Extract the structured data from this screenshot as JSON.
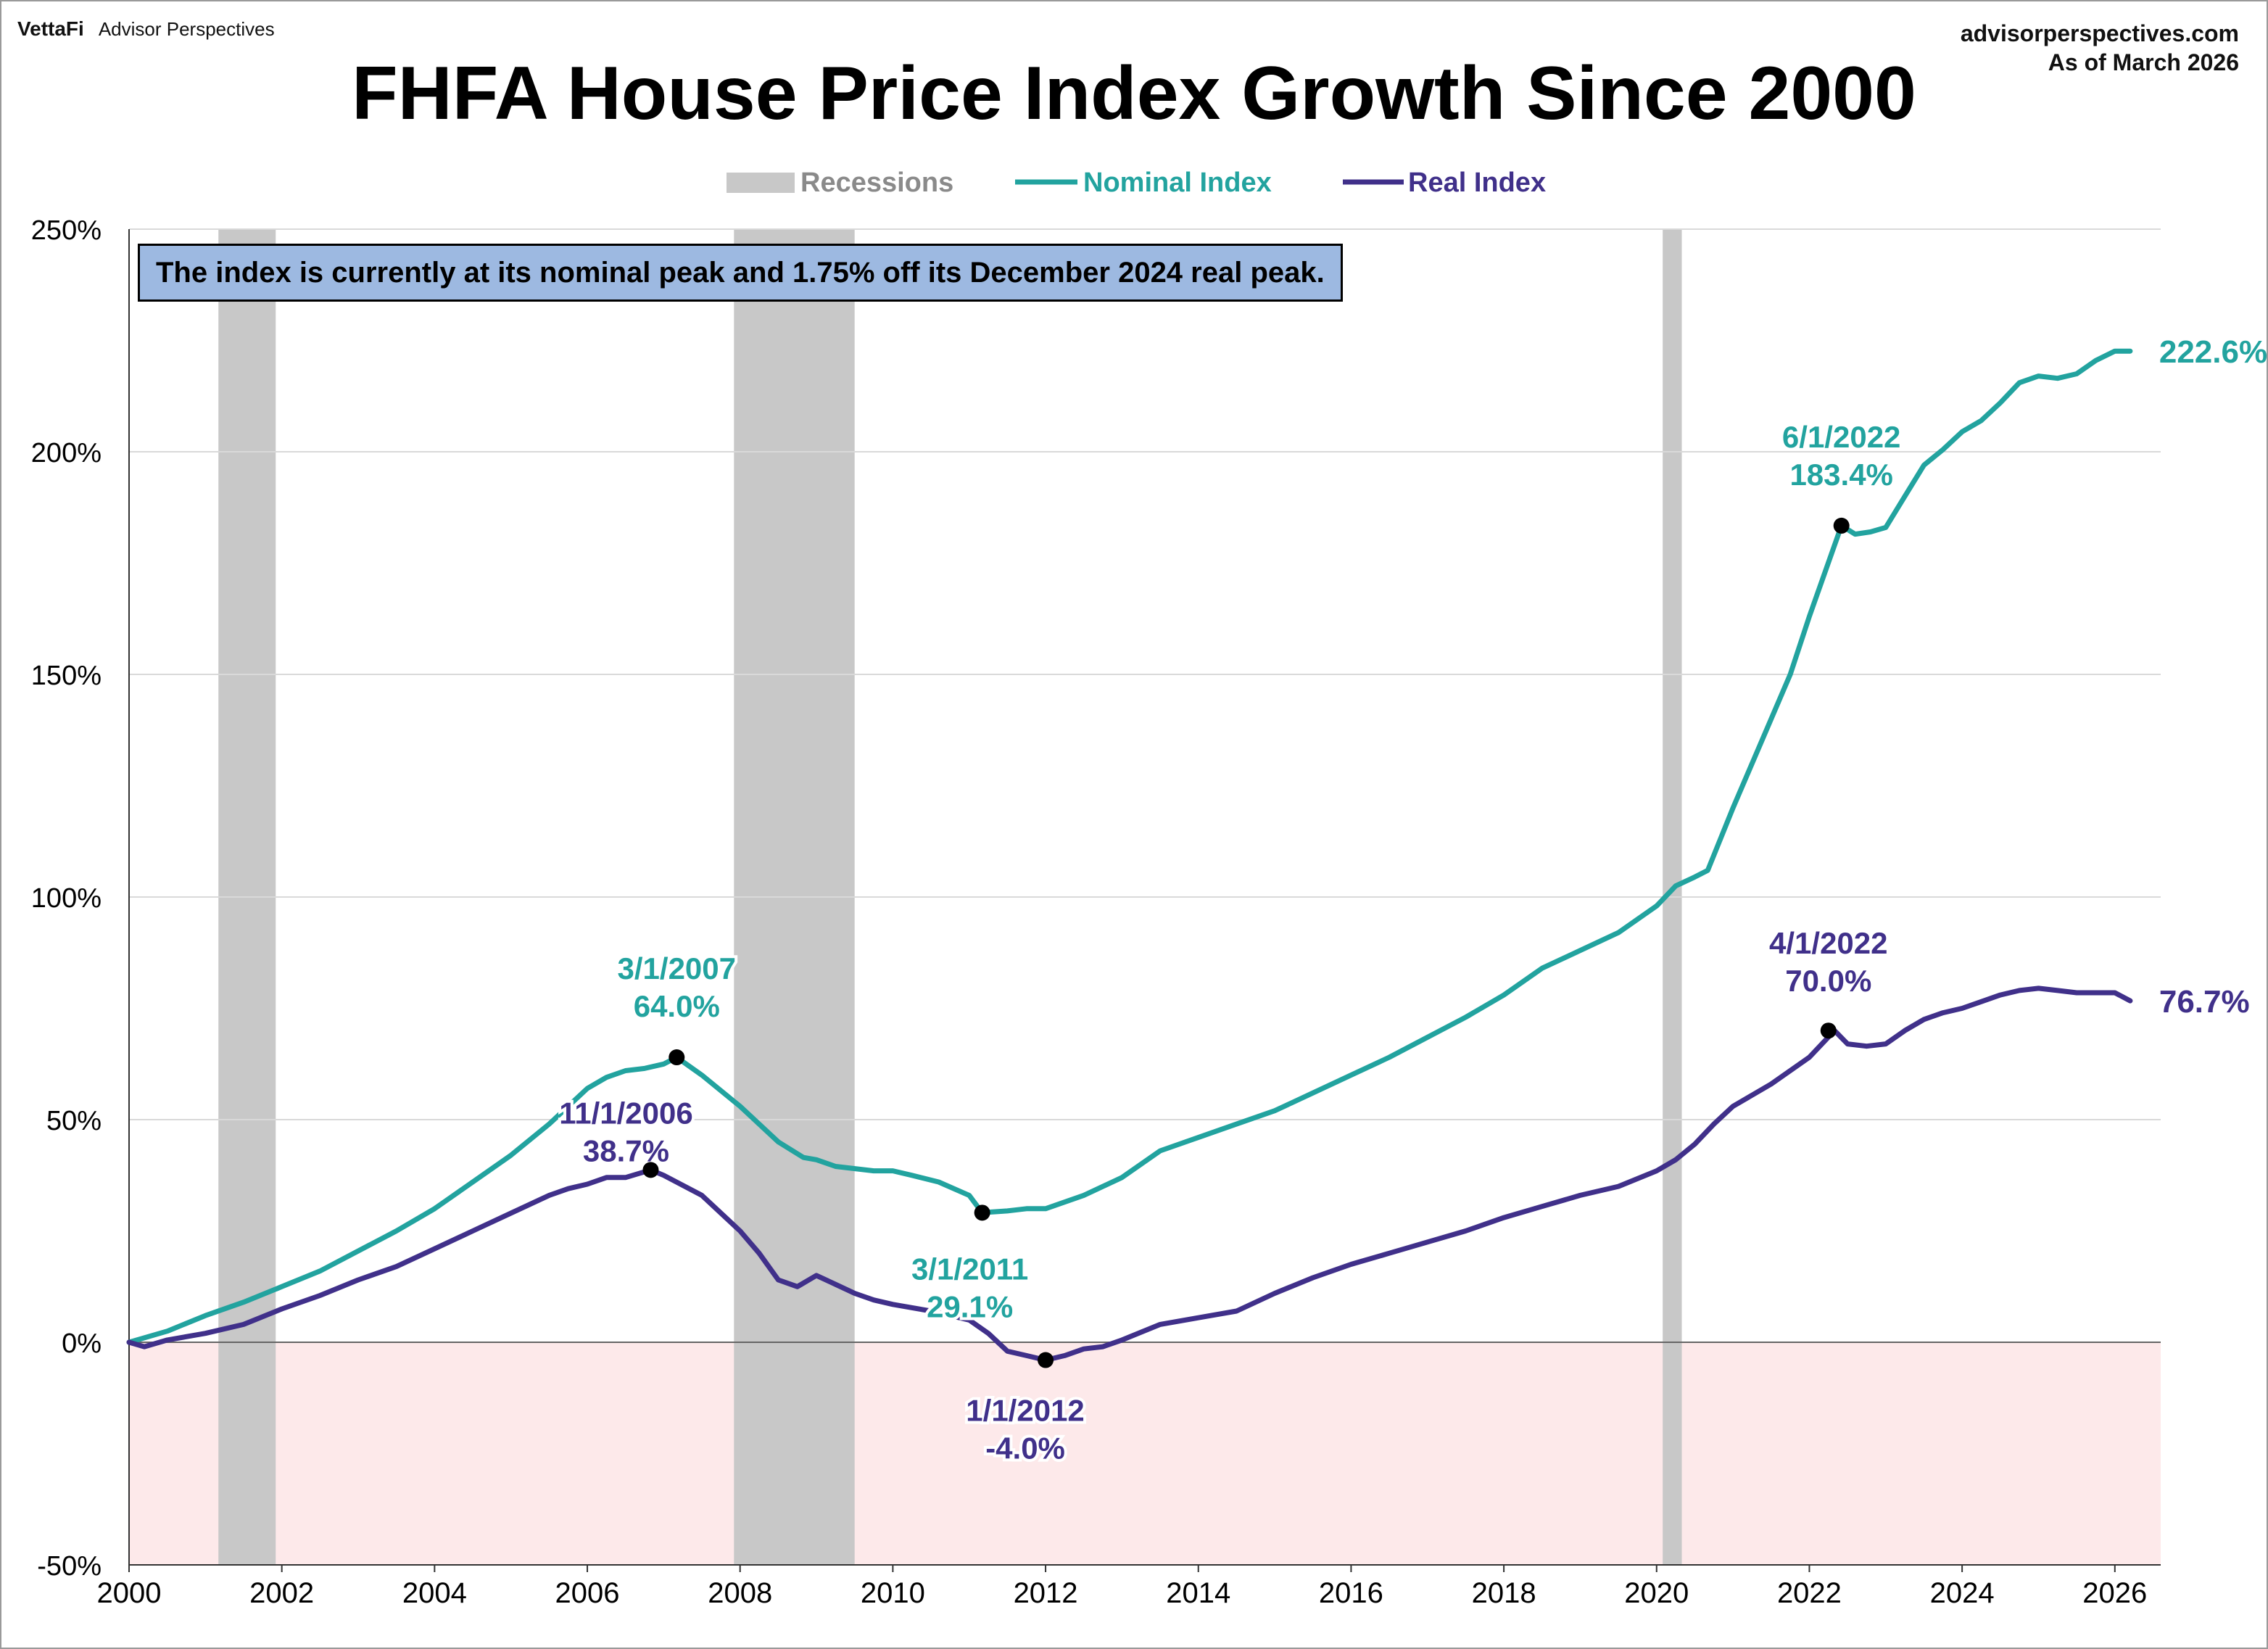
{
  "brand": {
    "logo": "VettaFi",
    "name": "Advisor Perspectives"
  },
  "source": {
    "site": "advisorperspectives.com",
    "asof": "As of March 2026"
  },
  "note": "The index is currently at its nominal peak and 1.75% off its December 2024 real peak.",
  "colors": {
    "nominal": "#22a39f",
    "real": "#40308a",
    "recession": "#c8c8c8",
    "negative_zone": "#fde9ea",
    "legend_recession_text": "#8a8a8a"
  },
  "chart_data": {
    "type": "line",
    "title": "FHFA House Price Index Growth Since 2000",
    "xlim": [
      2000,
      2026.6
    ],
    "ylim": [
      -50,
      250
    ],
    "x_ticks": [
      2000,
      2002,
      2004,
      2006,
      2008,
      2010,
      2012,
      2014,
      2016,
      2018,
      2020,
      2022,
      2024,
      2026
    ],
    "x_tick_labels": [
      "2000",
      "2002",
      "2004",
      "2006",
      "2008",
      "2010",
      "2012",
      "2014",
      "2016",
      "2018",
      "2020",
      "2022",
      "2024",
      "2026"
    ],
    "y_ticks": [
      -50,
      0,
      50,
      100,
      150,
      200,
      250
    ],
    "y_tick_labels": [
      "-50%",
      "0%",
      "50%",
      "100%",
      "150%",
      "200%",
      "250%"
    ],
    "grid": "horizontal",
    "legend": {
      "position": "top-center",
      "items": [
        "Recessions",
        "Nominal Index",
        "Real Index"
      ]
    },
    "recessions": [
      [
        2001.17,
        2001.92
      ],
      [
        2007.92,
        2009.5
      ],
      [
        2020.08,
        2020.33
      ]
    ],
    "series": [
      {
        "name": "Nominal Index",
        "end_label": "222.6%",
        "points": [
          [
            2000,
            0
          ],
          [
            2000.5,
            2.5
          ],
          [
            2001,
            6
          ],
          [
            2001.5,
            9
          ],
          [
            2002,
            12.5
          ],
          [
            2002.5,
            16
          ],
          [
            2003,
            20.5
          ],
          [
            2003.5,
            25
          ],
          [
            2004,
            30
          ],
          [
            2004.5,
            36
          ],
          [
            2005,
            42
          ],
          [
            2005.5,
            49
          ],
          [
            2006,
            57
          ],
          [
            2006.25,
            59.5
          ],
          [
            2006.5,
            61
          ],
          [
            2006.75,
            61.5
          ],
          [
            2007,
            62.5
          ],
          [
            2007.17,
            64
          ],
          [
            2007.5,
            60
          ],
          [
            2008,
            53
          ],
          [
            2008.5,
            45
          ],
          [
            2008.83,
            41.5
          ],
          [
            2009,
            41
          ],
          [
            2009.25,
            39.5
          ],
          [
            2009.75,
            38.5
          ],
          [
            2010,
            38.5
          ],
          [
            2010.25,
            37.5
          ],
          [
            2010.6,
            36
          ],
          [
            2011,
            33
          ],
          [
            2011.17,
            29.1
          ],
          [
            2011.5,
            29.5
          ],
          [
            2011.75,
            30
          ],
          [
            2012,
            30
          ],
          [
            2012.5,
            33
          ],
          [
            2013,
            37
          ],
          [
            2013.5,
            43
          ],
          [
            2014,
            46
          ],
          [
            2014.5,
            49
          ],
          [
            2015,
            52
          ],
          [
            2015.5,
            56
          ],
          [
            2016,
            60
          ],
          [
            2016.5,
            64
          ],
          [
            2017,
            68.5
          ],
          [
            2017.5,
            73
          ],
          [
            2018,
            78
          ],
          [
            2018.5,
            84
          ],
          [
            2019,
            88
          ],
          [
            2019.5,
            92
          ],
          [
            2020,
            98
          ],
          [
            2020.25,
            102.5
          ],
          [
            2020.5,
            104.5
          ],
          [
            2020.67,
            106
          ],
          [
            2021,
            120
          ],
          [
            2021.5,
            140
          ],
          [
            2021.75,
            150
          ],
          [
            2022,
            163
          ],
          [
            2022.42,
            183.4
          ],
          [
            2022.6,
            181.5
          ],
          [
            2022.8,
            182
          ],
          [
            2023,
            183
          ],
          [
            2023.25,
            190
          ],
          [
            2023.5,
            197
          ],
          [
            2023.75,
            200.5
          ],
          [
            2024,
            204.5
          ],
          [
            2024.25,
            207
          ],
          [
            2024.5,
            211
          ],
          [
            2024.75,
            215.5
          ],
          [
            2025,
            217
          ],
          [
            2025.25,
            216.5
          ],
          [
            2025.5,
            217.5
          ],
          [
            2025.75,
            220.5
          ],
          [
            2026,
            222.6
          ],
          [
            2026.2,
            222.6
          ]
        ],
        "annotations": [
          {
            "x": 2007.17,
            "y": 64.0,
            "date": "3/1/2007",
            "value": "64.0%"
          },
          {
            "x": 2011.17,
            "y": 29.1,
            "date": "3/1/2011",
            "value": "29.1%"
          },
          {
            "x": 2022.42,
            "y": 183.4,
            "date": "6/1/2022",
            "value": "183.4%"
          }
        ]
      },
      {
        "name": "Real Index",
        "end_label": "76.7%",
        "points": [
          [
            2000,
            0
          ],
          [
            2000.2,
            -1
          ],
          [
            2000.5,
            0.5
          ],
          [
            2001,
            2
          ],
          [
            2001.5,
            4
          ],
          [
            2002,
            7.5
          ],
          [
            2002.5,
            10.5
          ],
          [
            2003,
            14
          ],
          [
            2003.5,
            17
          ],
          [
            2004,
            21
          ],
          [
            2004.5,
            25
          ],
          [
            2005,
            29
          ],
          [
            2005.5,
            33
          ],
          [
            2005.75,
            34.5
          ],
          [
            2006,
            35.5
          ],
          [
            2006.25,
            37
          ],
          [
            2006.5,
            37
          ],
          [
            2006.83,
            38.7
          ],
          [
            2007,
            37.5
          ],
          [
            2007.5,
            33
          ],
          [
            2008,
            25
          ],
          [
            2008.25,
            20
          ],
          [
            2008.5,
            14
          ],
          [
            2008.75,
            12.5
          ],
          [
            2009,
            15
          ],
          [
            2009.25,
            13
          ],
          [
            2009.5,
            11
          ],
          [
            2009.75,
            9.5
          ],
          [
            2010,
            8.5
          ],
          [
            2010.5,
            7
          ],
          [
            2011,
            5
          ],
          [
            2011.25,
            2
          ],
          [
            2011.5,
            -2
          ],
          [
            2011.75,
            -3
          ],
          [
            2012,
            -4
          ],
          [
            2012.25,
            -3
          ],
          [
            2012.5,
            -1.5
          ],
          [
            2012.75,
            -1
          ],
          [
            2013,
            0.5
          ],
          [
            2013.5,
            4
          ],
          [
            2014,
            5.5
          ],
          [
            2014.5,
            7
          ],
          [
            2015,
            11
          ],
          [
            2015.5,
            14.5
          ],
          [
            2016,
            17.5
          ],
          [
            2016.5,
            20
          ],
          [
            2017,
            22.5
          ],
          [
            2017.5,
            25
          ],
          [
            2018,
            28
          ],
          [
            2018.5,
            30.5
          ],
          [
            2019,
            33
          ],
          [
            2019.5,
            35
          ],
          [
            2020,
            38.5
          ],
          [
            2020.25,
            41
          ],
          [
            2020.5,
            44.5
          ],
          [
            2020.75,
            49
          ],
          [
            2021,
            53
          ],
          [
            2021.5,
            58
          ],
          [
            2022,
            64
          ],
          [
            2022.33,
            70
          ],
          [
            2022.5,
            67
          ],
          [
            2022.75,
            66.5
          ],
          [
            2023,
            67
          ],
          [
            2023.25,
            70
          ],
          [
            2023.5,
            72.5
          ],
          [
            2023.75,
            74
          ],
          [
            2024,
            75
          ],
          [
            2024.25,
            76.5
          ],
          [
            2024.5,
            78
          ],
          [
            2024.75,
            79
          ],
          [
            2025,
            79.5
          ],
          [
            2025.25,
            79
          ],
          [
            2025.5,
            78.5
          ],
          [
            2025.75,
            78.5
          ],
          [
            2026,
            78.5
          ],
          [
            2026.2,
            76.7
          ]
        ],
        "annotations": [
          {
            "x": 2006.83,
            "y": 38.7,
            "date": "11/1/2006",
            "value": "38.7%"
          },
          {
            "x": 2012.0,
            "y": -4.0,
            "date": "1/1/2012",
            "value": "-4.0%"
          },
          {
            "x": 2022.25,
            "y": 70.0,
            "date": "4/1/2022",
            "value": "70.0%"
          }
        ]
      }
    ]
  }
}
